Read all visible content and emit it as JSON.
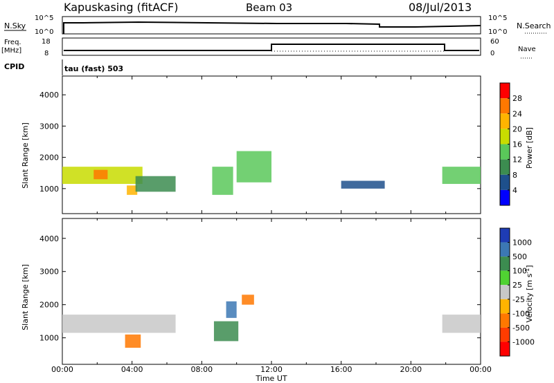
{
  "header": {
    "station": "Kapuskasing (fitACF)",
    "beam": "Beam 03",
    "date": "08/Jul/2013"
  },
  "panel_labels": {
    "nsky": "N.Sky",
    "nsky_top": "10^5",
    "nsky_bottom": "10^0",
    "nsearch": "N.Search",
    "nsearch_top": "10^5",
    "nsearch_bottom": "10^0",
    "freq": "Freq.",
    "freq_unit": "[MHz]",
    "freq_top": "18",
    "freq_bottom": "8",
    "nave": "Nave",
    "nave_top": "60",
    "nave_bottom": "0",
    "cpid": "CPID",
    "cpid_text": "tau (fast) 503"
  },
  "power_colorbar": {
    "title": "Power [dB]",
    "ticks": [
      "28",
      "24",
      "20",
      "16",
      "12",
      "8",
      "4"
    ],
    "colors": [
      "#ff0000",
      "#ff7800",
      "#ffb400",
      "#c8dc00",
      "#5ac85a",
      "#3c8c50",
      "#1e508c",
      "#0000ff"
    ]
  },
  "velocity_colorbar": {
    "title": "Velocity [m s",
    "title_sup": "-1",
    "title_end": "]",
    "ticks": [
      "1000",
      "500",
      "100",
      "25",
      "-25",
      "-100",
      "-500",
      "-1000"
    ],
    "colors": [
      "#1e3cb4",
      "#3c78b4",
      "#3c8c50",
      "#50d232",
      "#c8c8c8",
      "#ffb400",
      "#ff7800",
      "#ff3c00",
      "#ff0000"
    ]
  },
  "chart_data": [
    {
      "type": "heatmap",
      "title": "Power",
      "ylabel": "Slant Range [km]",
      "xlabel": "Time UT",
      "x_ticks": [
        "00:00",
        "04:00",
        "08:00",
        "12:00",
        "16:00",
        "20:00",
        "00:00"
      ],
      "y_ticks": [
        1000,
        2000,
        3000,
        4000
      ],
      "xlim": [
        0,
        24
      ],
      "ylim": [
        200,
        4600
      ],
      "regions": [
        {
          "t0": 0.0,
          "t1": 4.6,
          "r0": 1150,
          "r1": 1700,
          "value_db": 16
        },
        {
          "t0": 1.8,
          "t1": 2.6,
          "r0": 1300,
          "r1": 1600,
          "value_db": 24
        },
        {
          "t0": 3.7,
          "t1": 4.3,
          "r0": 800,
          "r1": 1100,
          "value_db": 22
        },
        {
          "t0": 4.2,
          "t1": 6.5,
          "r0": 900,
          "r1": 1400,
          "value_db": 10
        },
        {
          "t0": 8.6,
          "t1": 9.8,
          "r0": 800,
          "r1": 1700,
          "value_db": 14
        },
        {
          "t0": 10.0,
          "t1": 12.0,
          "r0": 1200,
          "r1": 2200,
          "value_db": 12
        },
        {
          "t0": 21.8,
          "t1": 24.0,
          "r0": 1150,
          "r1": 1700,
          "value_db": 14
        },
        {
          "t0": 16.0,
          "t1": 18.5,
          "r0": 1000,
          "r1": 1250,
          "value_db": 6
        }
      ]
    },
    {
      "type": "heatmap",
      "title": "Velocity",
      "ylabel": "Slant Range [km]",
      "xlabel": "Time UT",
      "x_ticks": [
        "00:00",
        "04:00",
        "08:00",
        "12:00",
        "16:00",
        "20:00",
        "00:00"
      ],
      "y_ticks": [
        1000,
        2000,
        3000,
        4000
      ],
      "xlim": [
        0,
        24
      ],
      "ylim": [
        200,
        4600
      ],
      "regions": [
        {
          "t0": 0.0,
          "t1": 6.5,
          "r0": 1150,
          "r1": 1700,
          "value_ms": 0
        },
        {
          "t0": 3.6,
          "t1": 4.5,
          "r0": 700,
          "r1": 1100,
          "value_ms": -300
        },
        {
          "t0": 8.7,
          "t1": 10.1,
          "r0": 900,
          "r1": 1500,
          "value_ms": 150
        },
        {
          "t0": 9.4,
          "t1": 10.0,
          "r0": 1600,
          "r1": 2100,
          "value_ms": 600
        },
        {
          "t0": 10.3,
          "t1": 11.0,
          "r0": 2000,
          "r1": 2300,
          "value_ms": -150
        },
        {
          "t0": 21.8,
          "t1": 24.0,
          "r0": 1150,
          "r1": 1700,
          "value_ms": 0
        }
      ]
    }
  ]
}
